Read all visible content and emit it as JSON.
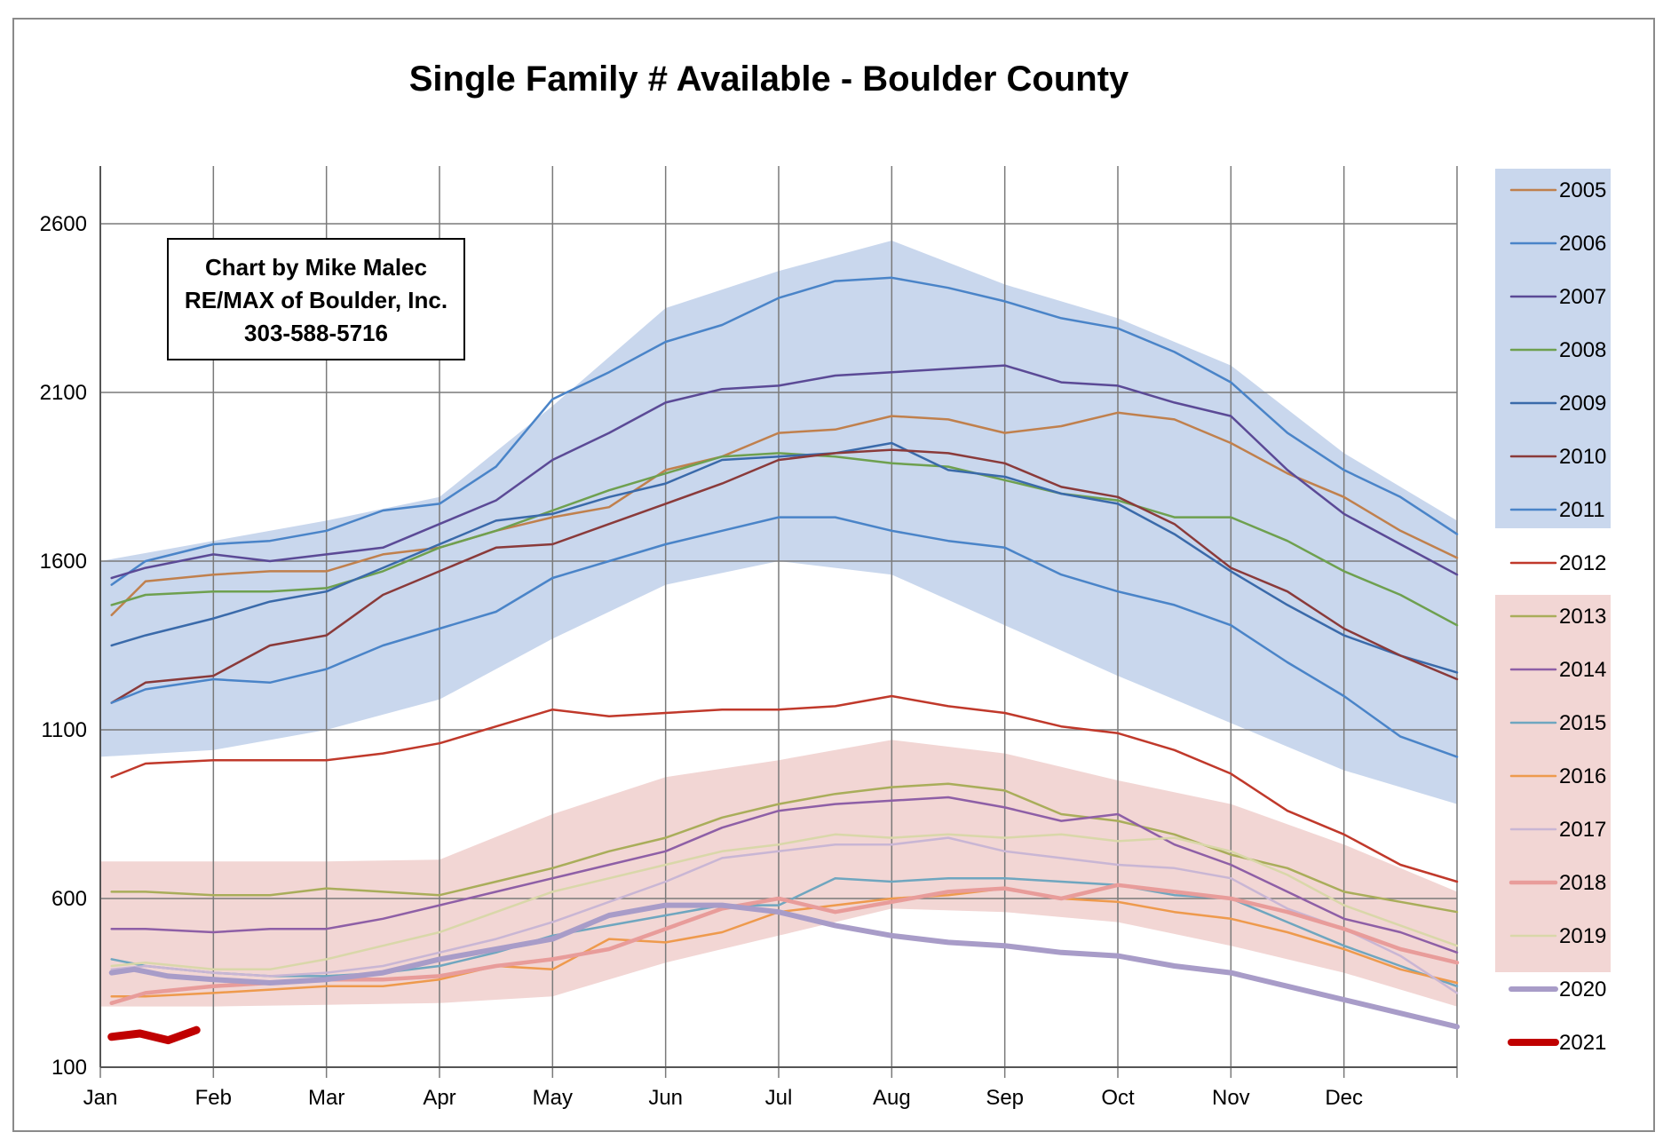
{
  "chart_data": {
    "type": "line",
    "title": "Single Family # Available - Boulder County",
    "credit_lines": [
      "Chart by Mike Malec",
      "RE/MAX of Boulder, Inc.",
      "303-588-5716"
    ],
    "xlabel": "",
    "ylabel": "",
    "x_ticks": [
      "Jan",
      "Feb",
      "Mar",
      "Apr",
      "May",
      "Jun",
      "Jul",
      "Aug",
      "Sep",
      "Oct",
      "Nov",
      "Dec"
    ],
    "y_ticks": [
      100,
      600,
      1100,
      1600,
      2100,
      2600
    ],
    "ylim": [
      100,
      2750
    ],
    "xlim": [
      0,
      12
    ],
    "grid": true,
    "legend_position": "right",
    "range_bands": [
      {
        "name": "2005-2011",
        "color": "#c9d7ed",
        "x": [
          0,
          1,
          2,
          3,
          4,
          5,
          6,
          7,
          8,
          9,
          10,
          11,
          12
        ],
        "upper": [
          1600,
          1660,
          1720,
          1790,
          2060,
          2350,
          2460,
          2550,
          2420,
          2320,
          2180,
          1920,
          1720
        ],
        "lower": [
          1020,
          1040,
          1100,
          1190,
          1370,
          1530,
          1600,
          1560,
          1410,
          1260,
          1120,
          980,
          880
        ]
      },
      {
        "name": "2013-2019",
        "color": "#f2d6d4",
        "x": [
          0,
          1,
          2,
          3,
          4,
          5,
          6,
          7,
          8,
          9,
          10,
          11,
          12
        ],
        "upper": [
          710,
          710,
          710,
          715,
          850,
          960,
          1010,
          1070,
          1030,
          950,
          880,
          760,
          620
        ],
        "lower": [
          280,
          280,
          285,
          290,
          310,
          410,
          490,
          570,
          560,
          530,
          460,
          380,
          280
        ]
      }
    ],
    "series": [
      {
        "name": "2005",
        "color": "#c0804d",
        "width": 2.5,
        "x": [
          0.1,
          0.4,
          1,
          1.5,
          2,
          2.5,
          3,
          3.5,
          4,
          4.5,
          5,
          5.5,
          6,
          6.5,
          7,
          7.5,
          8,
          8.5,
          9,
          9.5,
          10,
          10.5,
          11,
          11.5,
          12
        ],
        "values": [
          1440,
          1540,
          1560,
          1570,
          1570,
          1620,
          1640,
          1690,
          1730,
          1760,
          1870,
          1910,
          1980,
          1990,
          2030,
          2020,
          1980,
          2000,
          2040,
          2020,
          1950,
          1860,
          1790,
          1690,
          1610
        ]
      },
      {
        "name": "2006",
        "color": "#4a84c8",
        "width": 2.5,
        "x": [
          0.1,
          0.4,
          1,
          1.5,
          2,
          2.5,
          3,
          3.5,
          4,
          4.5,
          5,
          5.5,
          6,
          6.5,
          7,
          7.5,
          8,
          8.5,
          9,
          9.5,
          10,
          10.5,
          11,
          11.5,
          12
        ],
        "values": [
          1530,
          1600,
          1650,
          1660,
          1690,
          1750,
          1770,
          1880,
          2080,
          2160,
          2250,
          2300,
          2380,
          2430,
          2440,
          2410,
          2370,
          2320,
          2290,
          2220,
          2130,
          1980,
          1870,
          1790,
          1680
        ]
      },
      {
        "name": "2007",
        "color": "#5b4a96",
        "width": 2.5,
        "x": [
          0.1,
          0.4,
          1,
          1.5,
          2,
          2.5,
          3,
          3.5,
          4,
          4.5,
          5,
          5.5,
          6,
          6.5,
          7,
          7.5,
          8,
          8.5,
          9,
          9.5,
          10,
          10.5,
          11,
          11.5,
          12
        ],
        "values": [
          1550,
          1580,
          1620,
          1600,
          1620,
          1640,
          1710,
          1780,
          1900,
          1980,
          2070,
          2110,
          2120,
          2150,
          2160,
          2170,
          2180,
          2130,
          2120,
          2070,
          2030,
          1870,
          1740,
          1650,
          1560
        ]
      },
      {
        "name": "2008",
        "color": "#6ea04f",
        "width": 2.5,
        "x": [
          0.1,
          0.4,
          1,
          1.5,
          2,
          2.5,
          3,
          3.5,
          4,
          4.5,
          5,
          5.5,
          6,
          6.5,
          7,
          7.5,
          8,
          8.5,
          9,
          9.5,
          10,
          10.5,
          11,
          11.5,
          12
        ],
        "values": [
          1470,
          1500,
          1510,
          1510,
          1520,
          1570,
          1640,
          1690,
          1750,
          1810,
          1860,
          1910,
          1920,
          1910,
          1890,
          1880,
          1840,
          1800,
          1780,
          1730,
          1730,
          1660,
          1570,
          1500,
          1410
        ]
      },
      {
        "name": "2009",
        "color": "#3a6aaa",
        "width": 2.5,
        "x": [
          0.1,
          0.4,
          1,
          1.5,
          2,
          2.5,
          3,
          3.5,
          4,
          4.5,
          5,
          5.5,
          6,
          6.5,
          7,
          7.5,
          8,
          8.5,
          9,
          9.5,
          10,
          10.5,
          11,
          11.5,
          12
        ],
        "values": [
          1350,
          1380,
          1430,
          1480,
          1510,
          1580,
          1650,
          1720,
          1740,
          1790,
          1830,
          1900,
          1910,
          1920,
          1950,
          1870,
          1850,
          1800,
          1770,
          1680,
          1570,
          1470,
          1380,
          1320,
          1270
        ]
      },
      {
        "name": "2010",
        "color": "#8a3a3a",
        "width": 2.5,
        "x": [
          0.1,
          0.4,
          1,
          1.5,
          2,
          2.5,
          3,
          3.5,
          4,
          4.5,
          5,
          5.5,
          6,
          6.5,
          7,
          7.5,
          8,
          8.5,
          9,
          9.5,
          10,
          10.5,
          11,
          11.5,
          12
        ],
        "values": [
          1180,
          1240,
          1260,
          1350,
          1380,
          1500,
          1570,
          1640,
          1650,
          1710,
          1770,
          1830,
          1900,
          1920,
          1930,
          1920,
          1890,
          1820,
          1790,
          1710,
          1580,
          1510,
          1400,
          1320,
          1250
        ]
      },
      {
        "name": "2011",
        "color": "#4a84c8",
        "width": 2.5,
        "x": [
          0.1,
          0.4,
          1,
          1.5,
          2,
          2.5,
          3,
          3.5,
          4,
          4.5,
          5,
          5.5,
          6,
          6.5,
          7,
          7.5,
          8,
          8.5,
          9,
          9.5,
          10,
          10.5,
          11,
          11.5,
          12
        ],
        "values": [
          1180,
          1220,
          1250,
          1240,
          1280,
          1350,
          1400,
          1450,
          1550,
          1600,
          1650,
          1690,
          1730,
          1730,
          1690,
          1660,
          1640,
          1560,
          1510,
          1470,
          1410,
          1300,
          1200,
          1080,
          1020
        ]
      },
      {
        "name": "2012",
        "color": "#c0392b",
        "width": 2.5,
        "x": [
          0.1,
          0.4,
          1,
          1.5,
          2,
          2.5,
          3,
          3.5,
          4,
          4.5,
          5,
          5.5,
          6,
          6.5,
          7,
          7.5,
          8,
          8.5,
          9,
          9.5,
          10,
          10.5,
          11,
          11.5,
          12
        ],
        "values": [
          960,
          1000,
          1010,
          1010,
          1010,
          1030,
          1060,
          1110,
          1160,
          1140,
          1150,
          1160,
          1160,
          1170,
          1200,
          1170,
          1150,
          1110,
          1090,
          1040,
          970,
          860,
          790,
          700,
          650
        ]
      },
      {
        "name": "2013",
        "color": "#a9ad5a",
        "width": 2.5,
        "x": [
          0.1,
          0.4,
          1,
          1.5,
          2,
          2.5,
          3,
          3.5,
          4,
          4.5,
          5,
          5.5,
          6,
          6.5,
          7,
          7.5,
          8,
          8.5,
          9,
          9.5,
          10,
          10.5,
          11,
          11.5,
          12
        ],
        "values": [
          620,
          620,
          610,
          610,
          630,
          620,
          610,
          650,
          690,
          740,
          780,
          840,
          880,
          910,
          930,
          940,
          920,
          850,
          830,
          790,
          730,
          690,
          620,
          590,
          560
        ]
      },
      {
        "name": "2014",
        "color": "#8e5fa6",
        "width": 2.5,
        "x": [
          0.1,
          0.4,
          1,
          1.5,
          2,
          2.5,
          3,
          3.5,
          4,
          4.5,
          5,
          5.5,
          6,
          6.5,
          7,
          7.5,
          8,
          8.5,
          9,
          9.5,
          10,
          10.5,
          11,
          11.5,
          12
        ],
        "values": [
          510,
          510,
          500,
          510,
          510,
          540,
          580,
          620,
          660,
          700,
          740,
          810,
          860,
          880,
          890,
          900,
          870,
          830,
          850,
          760,
          700,
          620,
          540,
          500,
          440
        ]
      },
      {
        "name": "2015",
        "color": "#6fa6bf",
        "width": 2.5,
        "x": [
          0.1,
          0.4,
          1,
          1.5,
          2,
          2.5,
          3,
          3.5,
          4,
          4.5,
          5,
          5.5,
          6,
          6.5,
          7,
          7.5,
          8,
          8.5,
          9,
          9.5,
          10,
          10.5,
          11,
          11.5,
          12
        ],
        "values": [
          420,
          400,
          380,
          370,
          370,
          380,
          400,
          440,
          490,
          520,
          550,
          580,
          580,
          660,
          650,
          660,
          660,
          650,
          640,
          610,
          600,
          530,
          460,
          400,
          340
        ]
      },
      {
        "name": "2016",
        "color": "#ee9a4d",
        "width": 2.5,
        "x": [
          0.1,
          0.4,
          1,
          1.5,
          2,
          2.5,
          3,
          3.5,
          4,
          4.5,
          5,
          5.5,
          6,
          6.5,
          7,
          7.5,
          8,
          8.5,
          9,
          9.5,
          10,
          10.5,
          11,
          11.5,
          12
        ],
        "values": [
          310,
          310,
          320,
          330,
          340,
          340,
          360,
          400,
          390,
          480,
          470,
          500,
          560,
          580,
          600,
          610,
          630,
          600,
          590,
          560,
          540,
          500,
          450,
          390,
          350
        ]
      },
      {
        "name": "2017",
        "color": "#c9b6d4",
        "width": 2.5,
        "x": [
          0.1,
          0.4,
          1,
          1.5,
          2,
          2.5,
          3,
          3.5,
          4,
          4.5,
          5,
          5.5,
          6,
          6.5,
          7,
          7.5,
          8,
          8.5,
          9,
          9.5,
          10,
          10.5,
          11,
          11.5,
          12
        ],
        "values": [
          390,
          400,
          380,
          370,
          380,
          400,
          440,
          480,
          530,
          590,
          650,
          720,
          740,
          760,
          760,
          780,
          740,
          720,
          700,
          690,
          660,
          570,
          510,
          430,
          320
        ]
      },
      {
        "name": "2018",
        "color": "#e89c9a",
        "width": 4.5,
        "x": [
          0.1,
          0.4,
          1,
          1.5,
          2,
          2.5,
          3,
          3.5,
          4,
          4.5,
          5,
          5.5,
          6,
          6.5,
          7,
          7.5,
          8,
          8.5,
          9,
          9.5,
          10,
          10.5,
          11,
          11.5,
          12
        ],
        "values": [
          290,
          320,
          340,
          350,
          360,
          360,
          370,
          400,
          420,
          450,
          510,
          570,
          600,
          560,
          590,
          620,
          630,
          600,
          640,
          620,
          600,
          560,
          510,
          450,
          410
        ]
      },
      {
        "name": "2019",
        "color": "#d9d7a9",
        "width": 2.5,
        "x": [
          0.1,
          0.4,
          1,
          1.5,
          2,
          2.5,
          3,
          3.5,
          4,
          4.5,
          5,
          5.5,
          6,
          6.5,
          7,
          7.5,
          8,
          8.5,
          9,
          9.5,
          10,
          10.5,
          11,
          11.5,
          12
        ],
        "values": [
          400,
          410,
          390,
          390,
          420,
          460,
          500,
          560,
          620,
          660,
          700,
          740,
          760,
          790,
          780,
          790,
          780,
          790,
          770,
          780,
          740,
          670,
          580,
          520,
          460
        ]
      },
      {
        "name": "2020",
        "color": "#a89cc8",
        "width": 6,
        "x": [
          0.1,
          0.3,
          0.6,
          1,
          1.5,
          2,
          2.5,
          3,
          3.5,
          4,
          4.5,
          5,
          5.5,
          6,
          6.5,
          7,
          7.5,
          8,
          8.5,
          9,
          9.5,
          10,
          10.5,
          11,
          11.5,
          12
        ],
        "values": [
          380,
          390,
          370,
          360,
          350,
          360,
          380,
          420,
          450,
          480,
          550,
          580,
          580,
          560,
          520,
          490,
          470,
          460,
          440,
          430,
          400,
          380,
          340,
          300,
          260,
          220
        ]
      },
      {
        "name": "2021",
        "color": "#c00000",
        "width": 9,
        "x": [
          0.1,
          0.35,
          0.6,
          0.85
        ],
        "values": [
          190,
          200,
          180,
          210
        ]
      }
    ]
  }
}
